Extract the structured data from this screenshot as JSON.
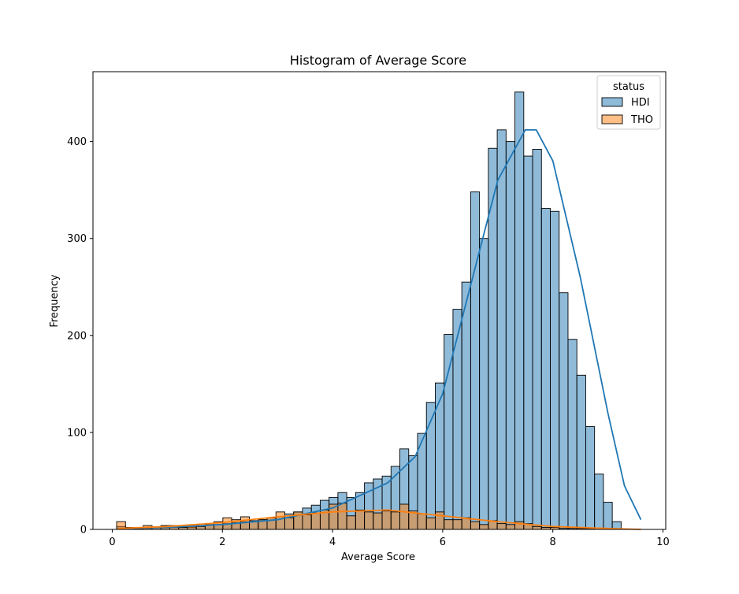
{
  "chart_data": {
    "type": "histogram",
    "title": "Histogram of Average Score",
    "xlabel": "Average Score",
    "ylabel": "Frequency",
    "xlim": [
      -0.35,
      10.05
    ],
    "ylim": [
      0,
      472
    ],
    "x_ticks": [
      "0",
      "2",
      "4",
      "6",
      "8",
      "10"
    ],
    "x_tick_values": [
      0,
      2,
      4,
      6,
      8,
      10
    ],
    "y_ticks": [
      "0",
      "100",
      "200",
      "300",
      "400"
    ],
    "y_tick_values": [
      0,
      100,
      200,
      300,
      400
    ],
    "bin_start": 0.08,
    "bin_width": 0.1607,
    "grid": false,
    "legend": {
      "title": "status",
      "placement": "top-right",
      "entries": [
        "HDI",
        "THO"
      ]
    },
    "series": [
      {
        "name": "HDI",
        "color": "#1f77b4",
        "values": [
          3,
          2,
          1,
          1,
          2,
          3,
          2,
          2,
          2,
          4,
          5,
          5,
          6,
          7,
          8,
          9,
          10,
          12,
          13,
          16,
          18,
          22,
          25,
          30,
          33,
          38,
          33,
          38,
          48,
          52,
          55,
          65,
          83,
          76,
          99,
          131,
          151,
          201,
          227,
          255,
          348,
          300,
          393,
          412,
          400,
          451,
          385,
          392,
          331,
          328,
          244,
          196,
          159,
          106,
          57,
          28,
          8
        ],
        "kde": [
          [
            0.1,
            1
          ],
          [
            1.0,
            2
          ],
          [
            2.0,
            5
          ],
          [
            3.0,
            10
          ],
          [
            4.0,
            22
          ],
          [
            5.0,
            48
          ],
          [
            5.5,
            75
          ],
          [
            6.0,
            140
          ],
          [
            6.5,
            250
          ],
          [
            7.0,
            360
          ],
          [
            7.5,
            412
          ],
          [
            7.7,
            412
          ],
          [
            8.0,
            380
          ],
          [
            8.5,
            260
          ],
          [
            9.0,
            120
          ],
          [
            9.3,
            45
          ],
          [
            9.6,
            10
          ]
        ]
      },
      {
        "name": "THO",
        "color": "#ff7f0e",
        "values": [
          8,
          2,
          1,
          4,
          2,
          4,
          4,
          2,
          3,
          3,
          6,
          8,
          12,
          10,
          13,
          8,
          10,
          12,
          18,
          12,
          18,
          15,
          17,
          20,
          26,
          27,
          14,
          20,
          18,
          17,
          19,
          18,
          26,
          19,
          16,
          12,
          18,
          10,
          10,
          12,
          8,
          5,
          9,
          6,
          5,
          8,
          6,
          3,
          2,
          2,
          1,
          1,
          1,
          1,
          0,
          0,
          0
        ],
        "kde": [
          [
            0.1,
            1
          ],
          [
            1.0,
            3
          ],
          [
            2.0,
            7
          ],
          [
            3.0,
            13
          ],
          [
            4.0,
            18
          ],
          [
            5.0,
            20
          ],
          [
            6.0,
            14
          ],
          [
            7.0,
            8
          ],
          [
            8.0,
            3
          ],
          [
            9.0,
            1
          ],
          [
            9.6,
            0
          ]
        ]
      }
    ]
  }
}
